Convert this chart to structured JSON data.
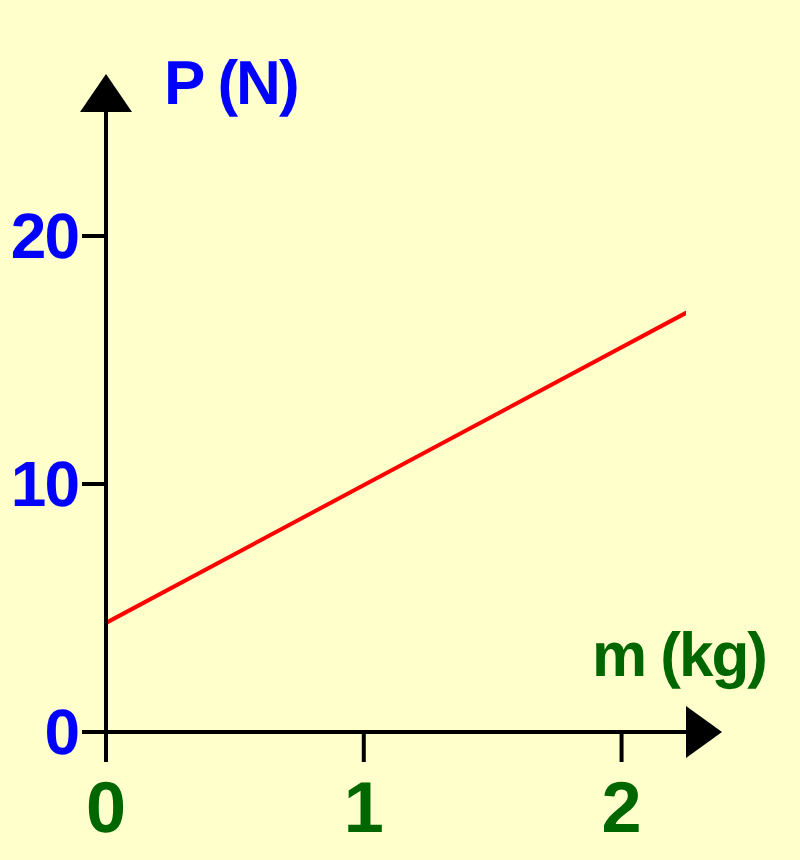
{
  "chart_data": {
    "type": "line",
    "xlabel": "m (kg)",
    "ylabel": "P (N)",
    "x": [
      0,
      2.25
    ],
    "series": [
      {
        "color": "#ff0000",
        "values": [
          4.4,
          16.9
        ]
      }
    ],
    "xlim": [
      0,
      2.25
    ],
    "ylim": [
      0,
      25
    ],
    "xticks": [
      0,
      1,
      2
    ],
    "yticks": [
      0,
      10,
      20
    ],
    "marker": "none",
    "line_style": "solid"
  }
}
